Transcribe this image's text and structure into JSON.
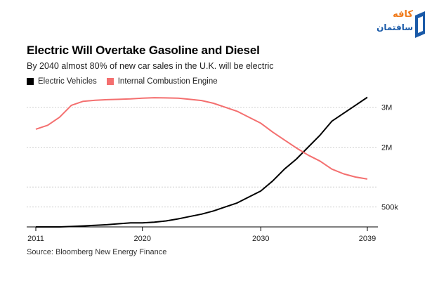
{
  "logo": {
    "line1": "کافه",
    "line2": "سافتمان",
    "colors": {
      "accent": "#f07a1a",
      "brand": "#1a5aa8"
    }
  },
  "chart_data": {
    "type": "line",
    "title": "Electric Will Overtake Gasoline and Diesel",
    "subtitle": "By 2040 almost 80% of new car sales in the U.K. will be electric",
    "source": "Source: Bloomberg New Energy Finance",
    "xlim": [
      2011,
      2039
    ],
    "ylim": [
      0,
      3400000
    ],
    "x_ticks": [
      2011,
      2020,
      2030,
      2039
    ],
    "x_tick_labels": [
      "2011",
      "2020",
      "2030",
      "2039"
    ],
    "y_ticks": [
      500000,
      2000000,
      3000000
    ],
    "y_tick_labels": [
      "500k",
      "2M",
      "3M"
    ],
    "y_gridlines": [
      500000,
      1000000,
      2000000,
      3000000
    ],
    "grid": true,
    "y_axis_side": "right",
    "legend_position": "top-left",
    "series": [
      {
        "name": "Electric Vehicles",
        "color": "#000000",
        "x": [
          2011,
          2012,
          2013,
          2014,
          2015,
          2016,
          2017,
          2018,
          2019,
          2020,
          2021,
          2022,
          2023,
          2024,
          2025,
          2026,
          2027,
          2028,
          2029,
          2030,
          2031,
          2032,
          2033,
          2034,
          2035,
          2036,
          2037,
          2038,
          2039
        ],
        "values": [
          0,
          0,
          0,
          10000,
          25000,
          40000,
          55000,
          80000,
          100000,
          100000,
          120000,
          150000,
          200000,
          260000,
          320000,
          400000,
          500000,
          600000,
          750000,
          900000,
          1150000,
          1450000,
          1700000,
          2000000,
          2300000,
          2650000,
          2850000,
          3050000,
          3250000
        ]
      },
      {
        "name": "Internal Combustion Engine",
        "color": "#f46f6f",
        "x": [
          2011,
          2012,
          2013,
          2014,
          2015,
          2016,
          2017,
          2018,
          2019,
          2020,
          2021,
          2022,
          2023,
          2024,
          2025,
          2026,
          2027,
          2028,
          2029,
          2030,
          2031,
          2032,
          2033,
          2034,
          2035,
          2036,
          2037,
          2038,
          2039
        ],
        "values": [
          2450000,
          2550000,
          2750000,
          3050000,
          3150000,
          3175000,
          3190000,
          3200000,
          3210000,
          3230000,
          3240000,
          3235000,
          3230000,
          3200000,
          3170000,
          3100000,
          3000000,
          2900000,
          2750000,
          2600000,
          2380000,
          2180000,
          1980000,
          1800000,
          1650000,
          1450000,
          1330000,
          1250000,
          1200000
        ]
      }
    ]
  }
}
